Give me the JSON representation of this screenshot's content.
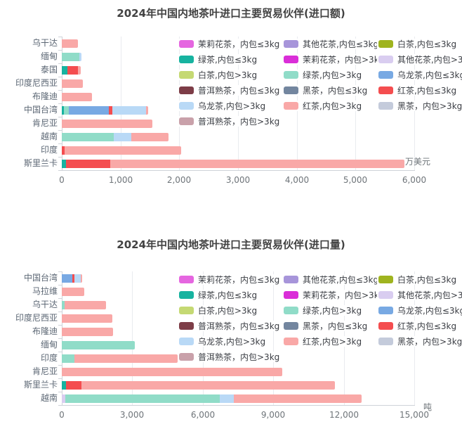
{
  "page": {
    "background": "#ffffff"
  },
  "series": [
    {
      "key": "moli_le3",
      "label": "茉莉花茶，内包≤3kg",
      "color": "#e566e0"
    },
    {
      "key": "huacha_le3",
      "label": "其他花茶,内包≤3kg",
      "color": "#a795da"
    },
    {
      "key": "baicha_le3",
      "label": "白茶,内包≤3kg",
      "color": "#9fb41f"
    },
    {
      "key": "lvcha_le3",
      "label": "绿茶,内包≤3kg",
      "color": "#17b3a0"
    },
    {
      "key": "moli_gt3",
      "label": "茉莉花茶，内包>3kg",
      "color": "#da2ed8"
    },
    {
      "key": "huacha_gt3",
      "label": "其他花茶,内包>3kg",
      "color": "#d9cdf0"
    },
    {
      "key": "baicha_gt3",
      "label": "白茶,内包>3kg",
      "color": "#c5d973"
    },
    {
      "key": "lvcha_gt3",
      "label": "绿茶,内包>3kg",
      "color": "#90dcc8"
    },
    {
      "key": "wulong_le3",
      "label": "乌龙茶,内包≤3kg",
      "color": "#78a9e3"
    },
    {
      "key": "puer_le3",
      "label": "普洱熟茶，内包≤3kg",
      "color": "#7d3d47"
    },
    {
      "key": "heicha_le3",
      "label": "黑茶，内包≤3kg",
      "color": "#73869f"
    },
    {
      "key": "hongcha_le3",
      "label": "红茶,内包≤3kg",
      "color": "#f44d4f"
    },
    {
      "key": "wulong_gt3",
      "label": "乌龙茶,内包>3kg",
      "color": "#b9d9f6"
    },
    {
      "key": "hongcha_gt3",
      "label": "红茶,内包>3kg",
      "color": "#f9a8a7"
    },
    {
      "key": "heicha_gt3",
      "label": "黑茶，内包>3kg",
      "color": "#c4cbdb"
    },
    {
      "key": "puer_gt3",
      "label": "普洱熟茶，内包>3kg",
      "color": "#c9a1aa"
    }
  ],
  "chart_data": [
    {
      "type": "bar",
      "orientation": "horizontal-stacked",
      "title": "2024年中国内地茶叶进口主要贸易伙伴(进口额)",
      "unit": "万美元",
      "xlim": [
        0,
        6000
      ],
      "x_ticks": [
        "0",
        "1,000",
        "2,000",
        "3,000",
        "4,000",
        "5,000",
        "6,000"
      ],
      "grid": true,
      "legend_position": "top-right",
      "categories": [
        "乌干达",
        "缅甸",
        "泰国",
        "印度尼西亚",
        "布隆迪",
        "中国台湾",
        "肯尼亚",
        "越南",
        "印度",
        "斯里兰卡"
      ],
      "bars": [
        {
          "category": "乌干达",
          "segments": [
            {
              "series": "hongcha_gt3",
              "value": 280
            }
          ]
        },
        {
          "category": "缅甸",
          "segments": [
            {
              "series": "lvcha_gt3",
              "value": 300
            },
            {
              "series": "wulong_gt3",
              "value": 30
            }
          ]
        },
        {
          "category": "泰国",
          "segments": [
            {
              "series": "lvcha_le3",
              "value": 100
            },
            {
              "series": "hongcha_le3",
              "value": 180
            },
            {
              "series": "hongcha_gt3",
              "value": 40
            }
          ]
        },
        {
          "category": "印度尼西亚",
          "segments": [
            {
              "series": "hongcha_gt3",
              "value": 360
            }
          ]
        },
        {
          "category": "布隆迪",
          "segments": [
            {
              "series": "hongcha_gt3",
              "value": 515
            }
          ]
        },
        {
          "category": "中国台湾",
          "segments": [
            {
              "series": "lvcha_le3",
              "value": 35
            },
            {
              "series": "lvcha_gt3",
              "value": 85
            },
            {
              "series": "wulong_le3",
              "value": 680
            },
            {
              "series": "hongcha_le3",
              "value": 60
            },
            {
              "series": "wulong_gt3",
              "value": 575
            },
            {
              "series": "hongcha_gt3",
              "value": 35
            }
          ]
        },
        {
          "category": "肯尼亚",
          "segments": [
            {
              "series": "hongcha_gt3",
              "value": 1540
            }
          ]
        },
        {
          "category": "越南",
          "segments": [
            {
              "series": "lvcha_gt3",
              "value": 885
            },
            {
              "series": "wulong_gt3",
              "value": 300
            },
            {
              "series": "hongcha_gt3",
              "value": 635
            }
          ]
        },
        {
          "category": "印度",
          "segments": [
            {
              "series": "hongcha_le3",
              "value": 50
            },
            {
              "series": "hongcha_gt3",
              "value": 1985
            }
          ]
        },
        {
          "category": "斯里兰卡",
          "segments": [
            {
              "series": "lvcha_le3",
              "value": 70
            },
            {
              "series": "hongcha_le3",
              "value": 760
            },
            {
              "series": "hongcha_gt3",
              "value": 5000
            }
          ]
        }
      ]
    },
    {
      "type": "bar",
      "orientation": "horizontal-stacked",
      "title": "2024年中国内地茶叶进口主要贸易伙伴(进口量)",
      "unit": "吨",
      "xlim": [
        0,
        15000
      ],
      "x_ticks": [
        "0",
        "3,000",
        "6,000",
        "9,000",
        "12,000",
        "15,000"
      ],
      "grid": true,
      "legend_position": "top-right",
      "categories": [
        "中国台湾",
        "马拉维",
        "乌干达",
        "印度尼西亚",
        "布隆迪",
        "缅甸",
        "印度",
        "肯尼亚",
        "斯里兰卡",
        "越南"
      ],
      "bars": [
        {
          "category": "中国台湾",
          "segments": [
            {
              "series": "wulong_le3",
              "value": 450
            },
            {
              "series": "hongcha_le3",
              "value": 90
            },
            {
              "series": "wulong_gt3",
              "value": 270
            },
            {
              "series": "hongcha_gt3",
              "value": 60
            }
          ]
        },
        {
          "category": "马拉维",
          "segments": [
            {
              "series": "hongcha_gt3",
              "value": 960
            }
          ]
        },
        {
          "category": "乌干达",
          "segments": [
            {
              "series": "lvcha_gt3",
              "value": 120
            },
            {
              "series": "hongcha_gt3",
              "value": 1760
            }
          ]
        },
        {
          "category": "印度尼西亚",
          "segments": [
            {
              "series": "hongcha_gt3",
              "value": 2150
            }
          ]
        },
        {
          "category": "布隆迪",
          "segments": [
            {
              "series": "hongcha_gt3",
              "value": 2180
            }
          ]
        },
        {
          "category": "缅甸",
          "segments": [
            {
              "series": "lvcha_gt3",
              "value": 3110
            }
          ]
        },
        {
          "category": "印度",
          "segments": [
            {
              "series": "lvcha_gt3",
              "value": 540
            },
            {
              "series": "hongcha_gt3",
              "value": 4390
            }
          ]
        },
        {
          "category": "肯尼亚",
          "segments": [
            {
              "series": "hongcha_gt3",
              "value": 9380
            }
          ]
        },
        {
          "category": "斯里兰卡",
          "segments": [
            {
              "series": "lvcha_le3",
              "value": 180
            },
            {
              "series": "hongcha_le3",
              "value": 660
            },
            {
              "series": "hongcha_gt3",
              "value": 10780
            }
          ]
        },
        {
          "category": "越南",
          "segments": [
            {
              "series": "huacha_gt3",
              "value": 150
            },
            {
              "series": "lvcha_gt3",
              "value": 6570
            },
            {
              "series": "wulong_gt3",
              "value": 600
            },
            {
              "series": "hongcha_gt3",
              "value": 5440
            }
          ]
        }
      ]
    }
  ]
}
